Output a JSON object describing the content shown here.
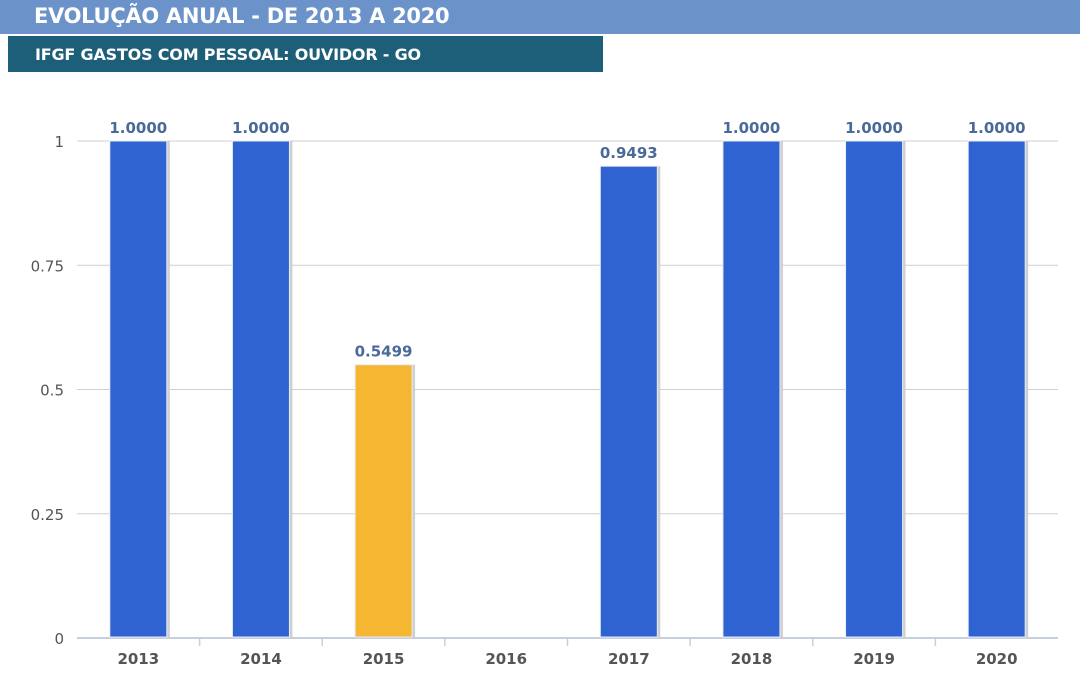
{
  "header": {
    "title": "EVOLUÇÃO ANUAL - DE 2013 A 2020",
    "subtitle": "IFGF GASTOS COM PESSOAL: OUVIDOR - GO"
  },
  "chart_data": {
    "type": "bar",
    "title": "IFGF GASTOS COM PESSOAL: OUVIDOR - GO",
    "xlabel": "",
    "ylabel": "",
    "categories": [
      "2013",
      "2014",
      "2015",
      "2016",
      "2017",
      "2018",
      "2019",
      "2020"
    ],
    "values": [
      1.0,
      1.0,
      0.5499,
      null,
      0.9493,
      1.0,
      1.0,
      1.0
    ],
    "data_labels": [
      "1.0000",
      "1.0000",
      "0.5499",
      "",
      "0.9493",
      "1.0000",
      "1.0000",
      "1.0000"
    ],
    "bar_colors": [
      "#2f63d1",
      "#2f63d1",
      "#f5b731",
      "#2f63d1",
      "#2f63d1",
      "#2f63d1",
      "#2f63d1",
      "#2f63d1"
    ],
    "yticks": [
      0,
      0.25,
      0.5,
      0.75,
      1
    ],
    "ytick_labels": [
      "0",
      "0.25",
      "0.5",
      "0.75",
      "1"
    ],
    "ylim": [
      0,
      1
    ],
    "grid": true,
    "legend": "none"
  }
}
